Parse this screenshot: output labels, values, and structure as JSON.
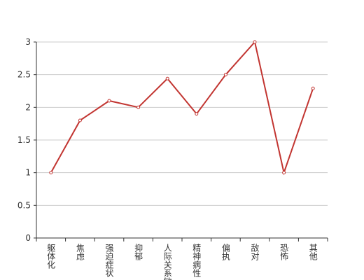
{
  "chart_data": {
    "type": "line",
    "categories": [
      "躯体化",
      "焦虑",
      "强迫症状",
      "抑郁",
      "人际关系敏感",
      "精神病性",
      "偏执",
      "敌对",
      "恐怖",
      "其他"
    ],
    "values": [
      1,
      1.8,
      2.1,
      2,
      2.44,
      1.9,
      2.5,
      3,
      1,
      2.29
    ],
    "color": "#c23531",
    "ylim": [
      0,
      3
    ],
    "yticks": [
      0,
      0.5,
      1,
      1.5,
      2,
      2.5,
      3
    ],
    "grid": true
  }
}
